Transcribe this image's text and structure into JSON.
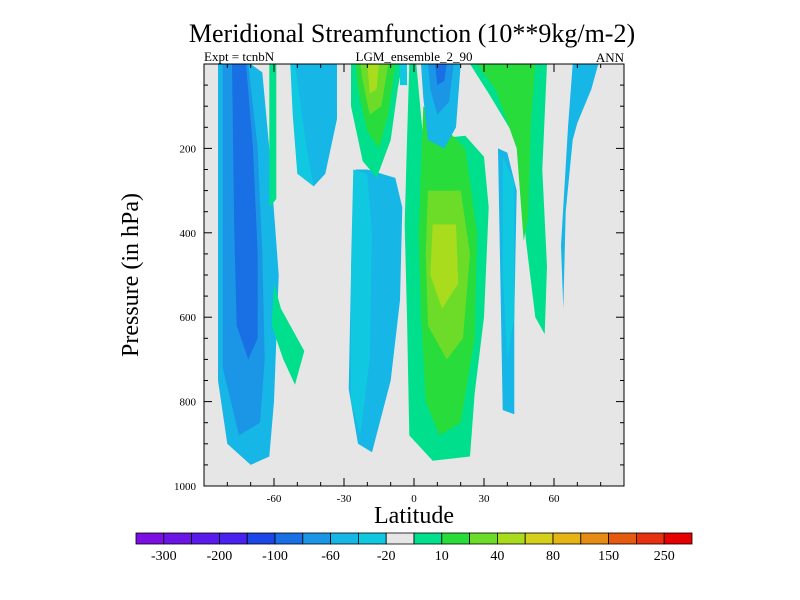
{
  "chart_data": {
    "type": "contour",
    "title": "Meridional Streamfunction (10**9kg/m-2)",
    "subtitle_left": "Expt = tcnbN",
    "subtitle_center": "LGM_ensemble_2_90",
    "subtitle_right": "ANN",
    "xlabel": "Latitude",
    "ylabel": "Pressure (in hPa)",
    "xlim": [
      -90,
      90
    ],
    "ylim": [
      1000,
      0
    ],
    "x_ticks": [
      -60,
      -30,
      0,
      30,
      60
    ],
    "x_tick_labels": [
      "-60",
      "-30",
      "0",
      "30",
      "60"
    ],
    "y_ticks": [
      200,
      400,
      600,
      800,
      1000
    ],
    "y_tick_labels": [
      "200",
      "400",
      "600",
      "800",
      "1000"
    ],
    "background_color": "#e6e6e6",
    "colorbar": {
      "colors": [
        "#7b0ee0",
        "#6a14e6",
        "#5a1aec",
        "#4a22f0",
        "#1c46e6",
        "#1870e4",
        "#1b96e6",
        "#16b6e6",
        "#10c8e0",
        "#e6e6e6",
        "#00e08c",
        "#28dc3c",
        "#6cdc28",
        "#a8dc1c",
        "#d6d01c",
        "#e6b414",
        "#e68c14",
        "#e65a10",
        "#e63010",
        "#e60000"
      ],
      "labels": [
        "-300",
        "-200",
        "-100",
        "-60",
        "-20",
        "10",
        "40",
        "80",
        "150",
        "250"
      ]
    },
    "contour_regions": [
      {
        "name": "sh-cell-outer",
        "level": -20,
        "color": "#16b6e6",
        "polygon": [
          [
            -84,
            0
          ],
          [
            -70,
            0
          ],
          [
            -65,
            20
          ],
          [
            -62,
            200
          ],
          [
            -58,
            500
          ],
          [
            -60,
            800
          ],
          [
            -62,
            930
          ],
          [
            -70,
            950
          ],
          [
            -80,
            900
          ],
          [
            -84,
            750
          ]
        ]
      },
      {
        "name": "sh-cell-mid",
        "level": -60,
        "color": "#1b96e6",
        "polygon": [
          [
            -82,
            0
          ],
          [
            -71,
            0
          ],
          [
            -67,
            200
          ],
          [
            -65,
            450
          ],
          [
            -64,
            700
          ],
          [
            -66,
            850
          ],
          [
            -75,
            880
          ],
          [
            -82,
            720
          ]
        ]
      },
      {
        "name": "sh-cell-core",
        "level": -100,
        "color": "#1870e4",
        "polygon": [
          [
            -78,
            0
          ],
          [
            -72,
            0
          ],
          [
            -69,
            200
          ],
          [
            -67,
            450
          ],
          [
            -67,
            650
          ],
          [
            -71,
            700
          ],
          [
            -76,
            620
          ],
          [
            -77,
            400
          ]
        ]
      },
      {
        "name": "sh-upper-ferrel",
        "level": -20,
        "color": "#16b6e6",
        "polygon": [
          [
            -51,
            0
          ],
          [
            -33,
            0
          ],
          [
            -33,
            130
          ],
          [
            -38,
            260
          ],
          [
            -43,
            290
          ],
          [
            -48,
            200
          ]
        ]
      },
      {
        "name": "sh-upper-ferrel-edge",
        "level": -20,
        "color": "#10c8e0",
        "polygon": [
          [
            -53,
            0
          ],
          [
            -51,
            0
          ],
          [
            -46,
            200
          ],
          [
            -43,
            290
          ],
          [
            -50,
            260
          ],
          [
            -52,
            120
          ]
        ]
      },
      {
        "name": "sh-mid-blue",
        "level": -20,
        "color": "#16b6e6",
        "polygon": [
          [
            -25,
            250
          ],
          [
            -20,
            250
          ],
          [
            -8,
            270
          ],
          [
            -5,
            340
          ],
          [
            -6,
            560
          ],
          [
            -10,
            750
          ],
          [
            -18,
            920
          ],
          [
            -24,
            900
          ],
          [
            -28,
            770
          ],
          [
            -27,
            500
          ]
        ]
      },
      {
        "name": "sh-mid-blue-edge",
        "level": -20,
        "color": "#10c8e0",
        "polygon": [
          [
            -26,
            250
          ],
          [
            -20,
            260
          ],
          [
            -18,
            400
          ],
          [
            -19,
            700
          ],
          [
            -23,
            880
          ],
          [
            -27,
            800
          ],
          [
            -27,
            480
          ]
        ]
      },
      {
        "name": "sh-green-strip",
        "level": 10,
        "color": "#00e08c",
        "polygon": [
          [
            -62,
            0
          ],
          [
            -59,
            0
          ],
          [
            -59,
            320
          ],
          [
            -62,
            340
          ]
        ]
      },
      {
        "name": "sh-green-patch",
        "level": 10,
        "color": "#00e08c",
        "polygon": [
          [
            -60,
            520
          ],
          [
            -57,
            580
          ],
          [
            -47,
            680
          ],
          [
            -51,
            760
          ],
          [
            -56,
            700
          ],
          [
            -61,
            620
          ]
        ]
      },
      {
        "name": "upper-green-cell",
        "level": 10,
        "color": "#00e08c",
        "polygon": [
          [
            -27,
            0
          ],
          [
            -5,
            0
          ],
          [
            -7,
            60
          ],
          [
            -10,
            180
          ],
          [
            -16,
            270
          ],
          [
            -22,
            230
          ],
          [
            -27,
            100
          ]
        ]
      },
      {
        "name": "upper-green-cell-40",
        "level": 40,
        "color": "#28dc3c",
        "polygon": [
          [
            -25,
            0
          ],
          [
            -8,
            0
          ],
          [
            -11,
            120
          ],
          [
            -15,
            200
          ],
          [
            -20,
            160
          ],
          [
            -24,
            60
          ]
        ]
      },
      {
        "name": "upper-green-cell-80",
        "level": 80,
        "color": "#6cdc28",
        "polygon": [
          [
            -23,
            0
          ],
          [
            -11,
            0
          ],
          [
            -14,
            100
          ],
          [
            -19,
            120
          ],
          [
            -22,
            40
          ]
        ]
      },
      {
        "name": "upper-green-cell-core",
        "level": 150,
        "color": "#a8dc1c",
        "polygon": [
          [
            -20,
            0
          ],
          [
            -15,
            0
          ],
          [
            -16,
            60
          ],
          [
            -19,
            70
          ]
        ]
      },
      {
        "name": "tropical-band",
        "level": 10,
        "color": "#00e08c",
        "polygon": [
          [
            -2,
            0
          ],
          [
            1,
            0
          ],
          [
            4,
            180
          ],
          [
            22,
            170
          ],
          [
            30,
            220
          ],
          [
            32,
            340
          ],
          [
            30,
            600
          ],
          [
            26,
            780
          ],
          [
            24,
            930
          ],
          [
            8,
            940
          ],
          [
            -2,
            880
          ],
          [
            -3,
            600
          ],
          [
            -4,
            380
          ],
          [
            -3,
            180
          ]
        ]
      },
      {
        "name": "tropical-band-40",
        "level": 40,
        "color": "#28dc3c",
        "polygon": [
          [
            4,
            100
          ],
          [
            22,
            200
          ],
          [
            27,
            400
          ],
          [
            26,
            650
          ],
          [
            20,
            850
          ],
          [
            11,
            880
          ],
          [
            5,
            800
          ],
          [
            3,
            600
          ],
          [
            2,
            400
          ],
          [
            3,
            250
          ]
        ]
      },
      {
        "name": "tropical-band-80",
        "level": 80,
        "color": "#6cdc28",
        "polygon": [
          [
            6,
            300
          ],
          [
            20,
            300
          ],
          [
            24,
            450
          ],
          [
            21,
            650
          ],
          [
            14,
            700
          ],
          [
            6,
            620
          ],
          [
            5,
            450
          ]
        ]
      },
      {
        "name": "tropical-band-core",
        "level": 150,
        "color": "#a8dc1c",
        "polygon": [
          [
            8,
            380
          ],
          [
            18,
            380
          ],
          [
            19,
            520
          ],
          [
            12,
            580
          ],
          [
            7,
            500
          ]
        ]
      },
      {
        "name": "nh-blue-cell",
        "level": -20,
        "color": "#16b6e6",
        "polygon": [
          [
            3,
            0
          ],
          [
            20,
            0
          ],
          [
            18,
            150
          ],
          [
            13,
            200
          ],
          [
            6,
            180
          ],
          [
            4,
            80
          ]
        ]
      },
      {
        "name": "nh-blue-cell-60",
        "level": -60,
        "color": "#1b96e6",
        "polygon": [
          [
            6,
            0
          ],
          [
            17,
            0
          ],
          [
            15,
            90
          ],
          [
            10,
            120
          ],
          [
            7,
            60
          ]
        ]
      },
      {
        "name": "nh-blue-cell-core",
        "level": -100,
        "color": "#1870e4",
        "polygon": [
          [
            9,
            0
          ],
          [
            14,
            0
          ],
          [
            13,
            40
          ],
          [
            10,
            50
          ]
        ]
      },
      {
        "name": "nh-green-upper",
        "level": 10,
        "color": "#00e08c",
        "polygon": [
          [
            24,
            0
          ],
          [
            57,
            0
          ],
          [
            55,
            250
          ],
          [
            57,
            480
          ],
          [
            56,
            640
          ],
          [
            52,
            600
          ],
          [
            48,
            420
          ],
          [
            44,
            180
          ],
          [
            32,
            70
          ]
        ]
      },
      {
        "name": "nh-green-upper-40",
        "level": 40,
        "color": "#28dc3c",
        "polygon": [
          [
            27,
            0
          ],
          [
            52,
            0
          ],
          [
            50,
            150
          ],
          [
            49,
            360
          ],
          [
            47,
            420
          ],
          [
            44,
            200
          ],
          [
            35,
            60
          ]
        ]
      },
      {
        "name": "nh-blue-strip",
        "level": -20,
        "color": "#16b6e6",
        "polygon": [
          [
            36,
            200
          ],
          [
            40,
            210
          ],
          [
            44,
            300
          ],
          [
            43,
            600
          ],
          [
            43,
            830
          ],
          [
            38,
            820
          ],
          [
            37,
            500
          ]
        ]
      },
      {
        "name": "nh-blue-strip-edge",
        "level": -20,
        "color": "#10c8e0",
        "polygon": [
          [
            38,
            220
          ],
          [
            43,
            280
          ],
          [
            43,
            600
          ],
          [
            40,
            700
          ],
          [
            38,
            500
          ]
        ]
      },
      {
        "name": "sh-polar-blue",
        "level": -20,
        "color": "#16b6e6",
        "polygon": [
          [
            68,
            0
          ],
          [
            79,
            0
          ],
          [
            76,
            60
          ],
          [
            70,
            140
          ],
          [
            68,
            180
          ],
          [
            65,
            350
          ],
          [
            64,
            580
          ],
          [
            63,
            430
          ],
          [
            66,
            150
          ]
        ]
      },
      {
        "name": "sh-upper-cyan",
        "level": -20,
        "color": "#10c8e0",
        "polygon": [
          [
            -6,
            0
          ],
          [
            -3,
            0
          ],
          [
            -3,
            50
          ],
          [
            -6,
            50
          ]
        ]
      }
    ]
  }
}
